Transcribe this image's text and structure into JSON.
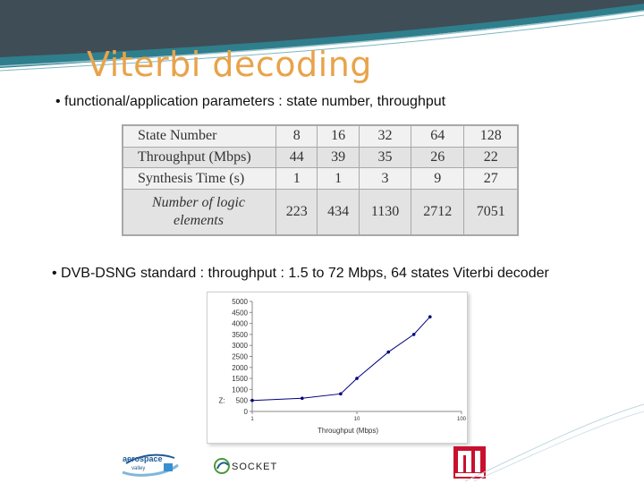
{
  "slide": {
    "title": "Viterbi decoding",
    "bullet1": "• functional/application parameters : state number, throughput",
    "bullet2": "• DVB-DSNG standard : throughput : 1.5 to 72 Mbps, 64 states Viterbi decoder"
  },
  "table": {
    "rows": [
      {
        "label": "State Number",
        "values": [
          "8",
          "16",
          "32",
          "64",
          "128"
        ]
      },
      {
        "label": "Throughput (Mbps)",
        "values": [
          "44",
          "39",
          "35",
          "26",
          "22"
        ]
      },
      {
        "label": "Synthesis Time (s)",
        "values": [
          "1",
          "1",
          "3",
          "9",
          "27"
        ]
      },
      {
        "label_line1": "Number of logic",
        "label_line2": "elements",
        "values": [
          "223",
          "434",
          "1130",
          "2712",
          "7051"
        ]
      }
    ]
  },
  "chart_data": {
    "type": "line",
    "x_scale": "log",
    "xlabel": "Throughput (Mbps)",
    "ylabel": "Z:",
    "x_ticks": [
      "1",
      "10",
      "100"
    ],
    "y_ticks": [
      "0",
      "500",
      "1000",
      "1500",
      "2000",
      "2500",
      "3000",
      "3500",
      "4000",
      "4500",
      "5000"
    ],
    "xlim": [
      1,
      100
    ],
    "ylim": [
      0,
      5000
    ],
    "x": [
      1,
      3,
      7,
      10,
      20,
      35,
      50
    ],
    "y": [
      500,
      600,
      800,
      1500,
      2700,
      3500,
      4300
    ]
  },
  "colors": {
    "title": "#e8a34a",
    "swoosh_dark": "#3f4d57",
    "swoosh_teal": "#2f7e8c",
    "line": "#000080"
  },
  "logos": {
    "aerospace_text": "aerospace",
    "aerospace_sub": "valley",
    "socket_text": "SOCKET"
  }
}
